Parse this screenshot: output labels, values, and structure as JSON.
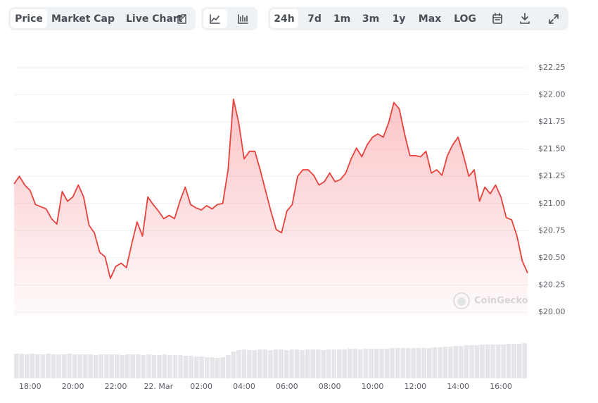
{
  "toolbar": {
    "metrics": [
      "Price",
      "Market Cap",
      "Live Chart"
    ],
    "ranges": [
      "24h",
      "7d",
      "1m",
      "3m",
      "1y",
      "Max",
      "LOG"
    ]
  },
  "watermark": "CoinGecko",
  "chart_data": {
    "type": "line",
    "color": "#e8423c",
    "grid": true,
    "categories": [
      null,
      null,
      null,
      "18:00",
      null,
      null,
      null,
      null,
      null,
      null,
      null,
      "20:00",
      null,
      null,
      null,
      null,
      null,
      null,
      null,
      "22:00",
      null,
      null,
      null,
      null,
      null,
      null,
      null,
      "22. Mar",
      null,
      null,
      null,
      null,
      null,
      null,
      null,
      "02:00",
      null,
      null,
      null,
      null,
      null,
      null,
      null,
      "04:00",
      null,
      null,
      null,
      null,
      null,
      null,
      null,
      "06:00",
      null,
      null,
      null,
      null,
      null,
      null,
      null,
      "08:00",
      null,
      null,
      null,
      null,
      null,
      null,
      null,
      "10:00",
      null,
      null,
      null,
      null,
      null,
      null,
      null,
      "12:00",
      null,
      null,
      null,
      null,
      null,
      null,
      null,
      "14:00",
      null,
      null,
      null,
      null,
      null,
      null,
      null,
      "16:00",
      null,
      null,
      null,
      null,
      null
    ],
    "values": [
      21.18,
      21.25,
      21.17,
      21.12,
      20.99,
      20.97,
      20.95,
      20.86,
      20.81,
      21.11,
      21.02,
      21.06,
      21.17,
      21.06,
      20.8,
      20.73,
      20.55,
      20.51,
      20.31,
      20.42,
      20.45,
      20.41,
      20.63,
      20.83,
      20.7,
      21.06,
      20.99,
      20.93,
      20.86,
      20.89,
      20.86,
      21.02,
      21.15,
      20.99,
      20.96,
      20.94,
      20.98,
      20.95,
      20.99,
      21.0,
      21.31,
      21.96,
      21.74,
      21.41,
      21.48,
      21.48,
      21.31,
      21.12,
      20.93,
      20.76,
      20.73,
      20.93,
      20.99,
      21.25,
      21.31,
      21.31,
      21.26,
      21.17,
      21.2,
      21.28,
      21.2,
      21.22,
      21.28,
      21.41,
      21.51,
      21.43,
      21.54,
      21.61,
      21.64,
      21.61,
      21.74,
      21.93,
      21.87,
      21.64,
      21.44,
      21.44,
      21.43,
      21.48,
      21.28,
      21.31,
      21.26,
      21.44,
      21.54,
      21.61,
      21.44,
      21.25,
      21.31,
      21.02,
      21.15,
      21.09,
      21.17,
      21.06,
      20.87,
      20.85,
      20.7,
      20.47,
      20.36
    ],
    "volume": [
      35,
      35,
      34,
      35,
      34,
      34,
      35,
      34,
      34,
      34,
      35,
      34,
      34,
      34,
      34,
      33,
      34,
      34,
      34,
      34,
      33,
      34,
      34,
      34,
      33,
      34,
      33,
      33,
      34,
      33,
      33,
      33,
      32,
      32,
      31,
      31,
      30,
      30,
      29,
      30,
      33,
      38,
      40,
      41,
      40,
      40,
      41,
      41,
      40,
      41,
      41,
      40,
      41,
      41,
      40,
      41,
      41,
      41,
      40,
      41,
      41,
      41,
      41,
      42,
      42,
      41,
      42,
      42,
      42,
      42,
      42,
      43,
      43,
      43,
      43,
      43,
      43,
      43,
      43,
      44,
      44,
      45,
      45,
      46,
      46,
      47,
      47,
      47,
      48,
      48,
      48,
      48,
      48,
      49,
      49,
      49,
      50
    ],
    "ylim": [
      20,
      22.25
    ],
    "yticks": [
      {
        "value": 20,
        "label": "$20.00"
      },
      {
        "value": 20.25,
        "label": "$20.25"
      },
      {
        "value": 20.5,
        "label": "$20.50"
      },
      {
        "value": 20.75,
        "label": "$20.75"
      },
      {
        "value": 21,
        "label": "$21.00"
      },
      {
        "value": 21.25,
        "label": "$21.25"
      },
      {
        "value": 21.5,
        "label": "$21.50"
      },
      {
        "value": 21.75,
        "label": "$21.75"
      },
      {
        "value": 22,
        "label": "$22.00"
      },
      {
        "value": 22.25,
        "label": "$22.25"
      }
    ]
  }
}
